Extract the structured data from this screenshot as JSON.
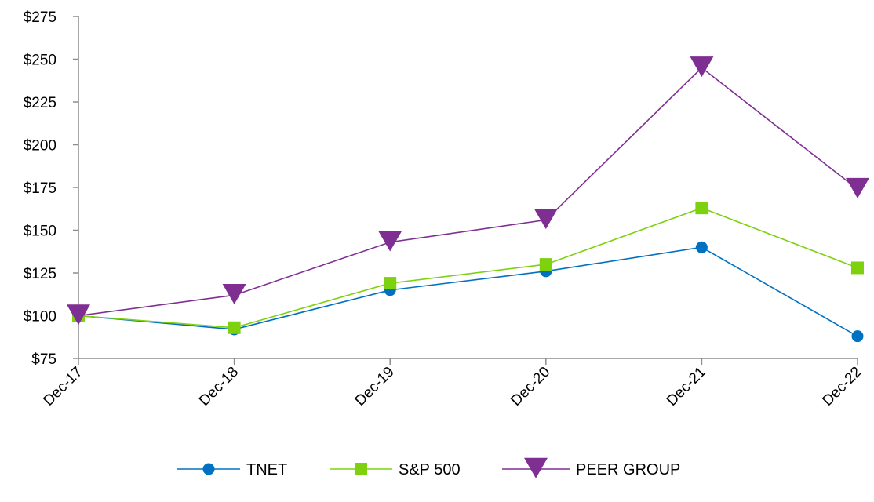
{
  "chart_data": {
    "type": "line",
    "categories": [
      "Dec-17",
      "Dec-18",
      "Dec-19",
      "Dec-20",
      "Dec-21",
      "Dec-22"
    ],
    "ylim": [
      75,
      275
    ],
    "yticks": [
      75,
      100,
      125,
      150,
      175,
      200,
      225,
      250,
      275
    ],
    "ytick_labels": [
      "$75",
      "$100",
      "$125",
      "$150",
      "$175",
      "$200",
      "$225",
      "$250",
      "$275"
    ],
    "grid": false,
    "legend_position": "bottom",
    "series": [
      {
        "name": "TNET",
        "values": [
          100,
          92,
          115,
          126,
          140,
          88
        ],
        "color": "#0070C0",
        "marker": "circle"
      },
      {
        "name": "S&P 500",
        "values": [
          100,
          93,
          119,
          130,
          163,
          128
        ],
        "color": "#7DD10F",
        "marker": "square"
      },
      {
        "name": "PEER GROUP",
        "values": [
          100,
          112,
          143,
          156,
          245,
          174
        ],
        "color": "#7F2F92",
        "marker": "triangle-down"
      }
    ]
  }
}
